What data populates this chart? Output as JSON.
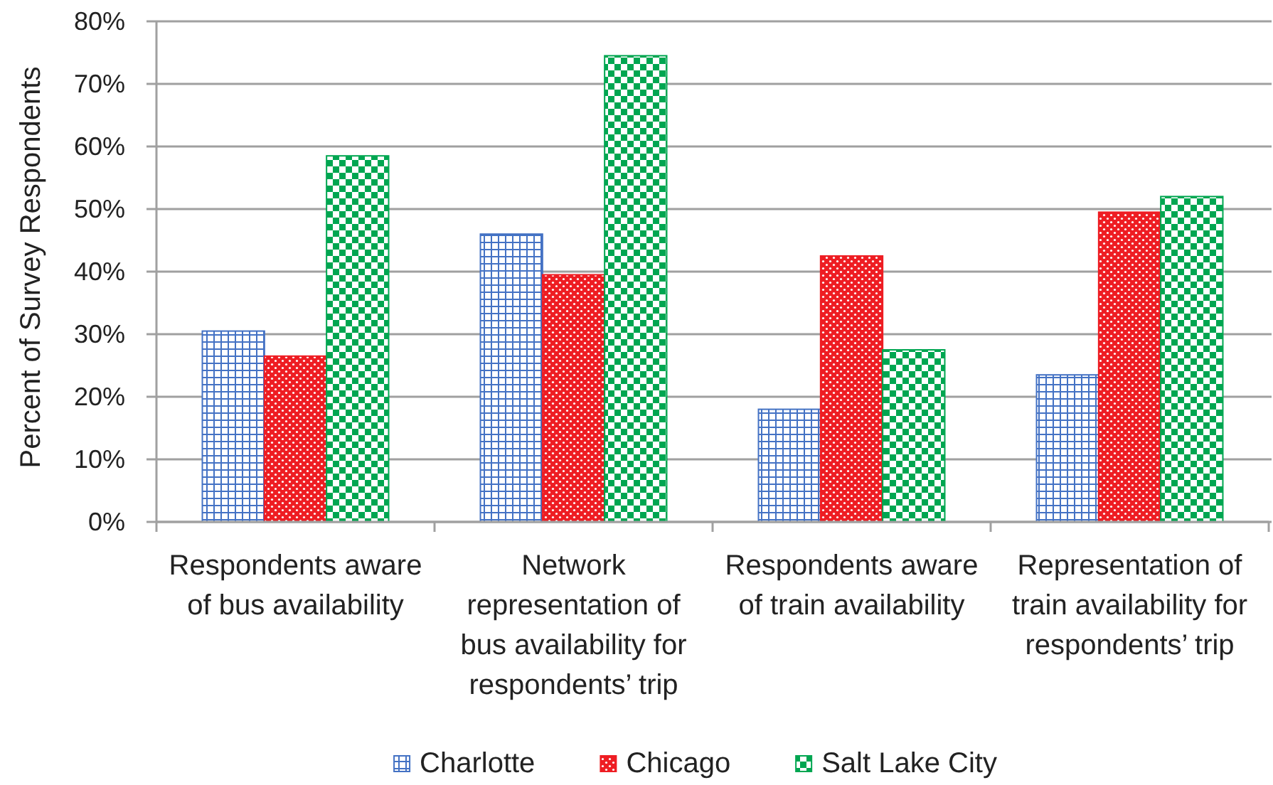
{
  "chart_data": {
    "type": "bar",
    "ylabel": "Percent of Survey Respondents",
    "categories": [
      "Respondents aware of bus availability",
      "Network representation of bus availability for respondents’ trip",
      "Respondents aware of train availability",
      "Representation of train availability for respondents’ trip"
    ],
    "series": [
      {
        "name": "Charlotte",
        "color": "#4472c4",
        "values": [
          30.5,
          46,
          18,
          23.5
        ]
      },
      {
        "name": "Chicago",
        "color": "#ee1d23",
        "values": [
          26.5,
          39.5,
          42.5,
          49.5
        ]
      },
      {
        "name": "Salt Lake City",
        "color": "#00a651",
        "values": [
          58.5,
          74.5,
          27.5,
          52
        ]
      }
    ],
    "ylim": [
      0,
      80
    ],
    "yticks": [
      {
        "value": 0,
        "label": "0%"
      },
      {
        "value": 10,
        "label": "10%"
      },
      {
        "value": 20,
        "label": "20%"
      },
      {
        "value": 30,
        "label": "30%"
      },
      {
        "value": 40,
        "label": "40%"
      },
      {
        "value": 50,
        "label": "50%"
      },
      {
        "value": 60,
        "label": "60%"
      },
      {
        "value": 70,
        "label": "70%"
      },
      {
        "value": 80,
        "label": "80%"
      }
    ],
    "grid": "y",
    "legend": "bottom"
  }
}
